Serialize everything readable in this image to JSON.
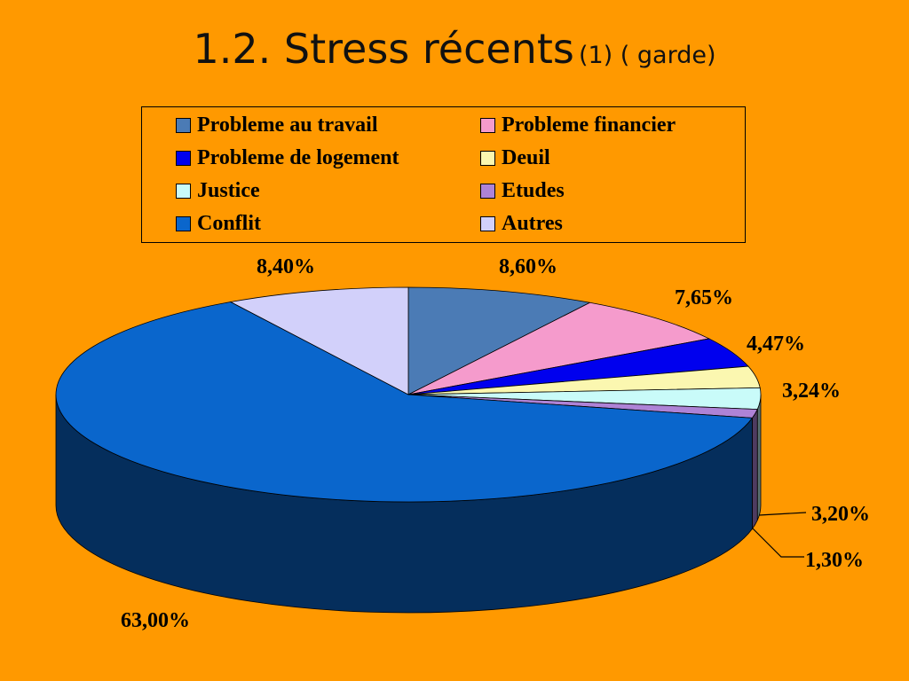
{
  "title": {
    "main": "1.2. Stress récents",
    "sub": "(1) ( garde)"
  },
  "chart_data": {
    "type": "pie",
    "style": "3d",
    "legend_position": "top",
    "categories": [
      "Probleme au travail",
      "Probleme financier",
      "Probleme de logement",
      "Deuil",
      "Justice",
      "Etudes",
      "Conflit",
      "Autres"
    ],
    "values": [
      8.6,
      7.65,
      4.47,
      3.24,
      3.2,
      1.3,
      63.0,
      8.4
    ],
    "labels": [
      "8,60%",
      "7,65%",
      "4,47%",
      "3,24%",
      "3,20%",
      "1,30%",
      "63,00%",
      "8,40%"
    ],
    "colors": [
      "#4B7BB5",
      "#F59BCC",
      "#0000EE",
      "#FBF7B0",
      "#C9FBF9",
      "#AE83D6",
      "#0A66CC",
      "#D2D0FA"
    ]
  }
}
